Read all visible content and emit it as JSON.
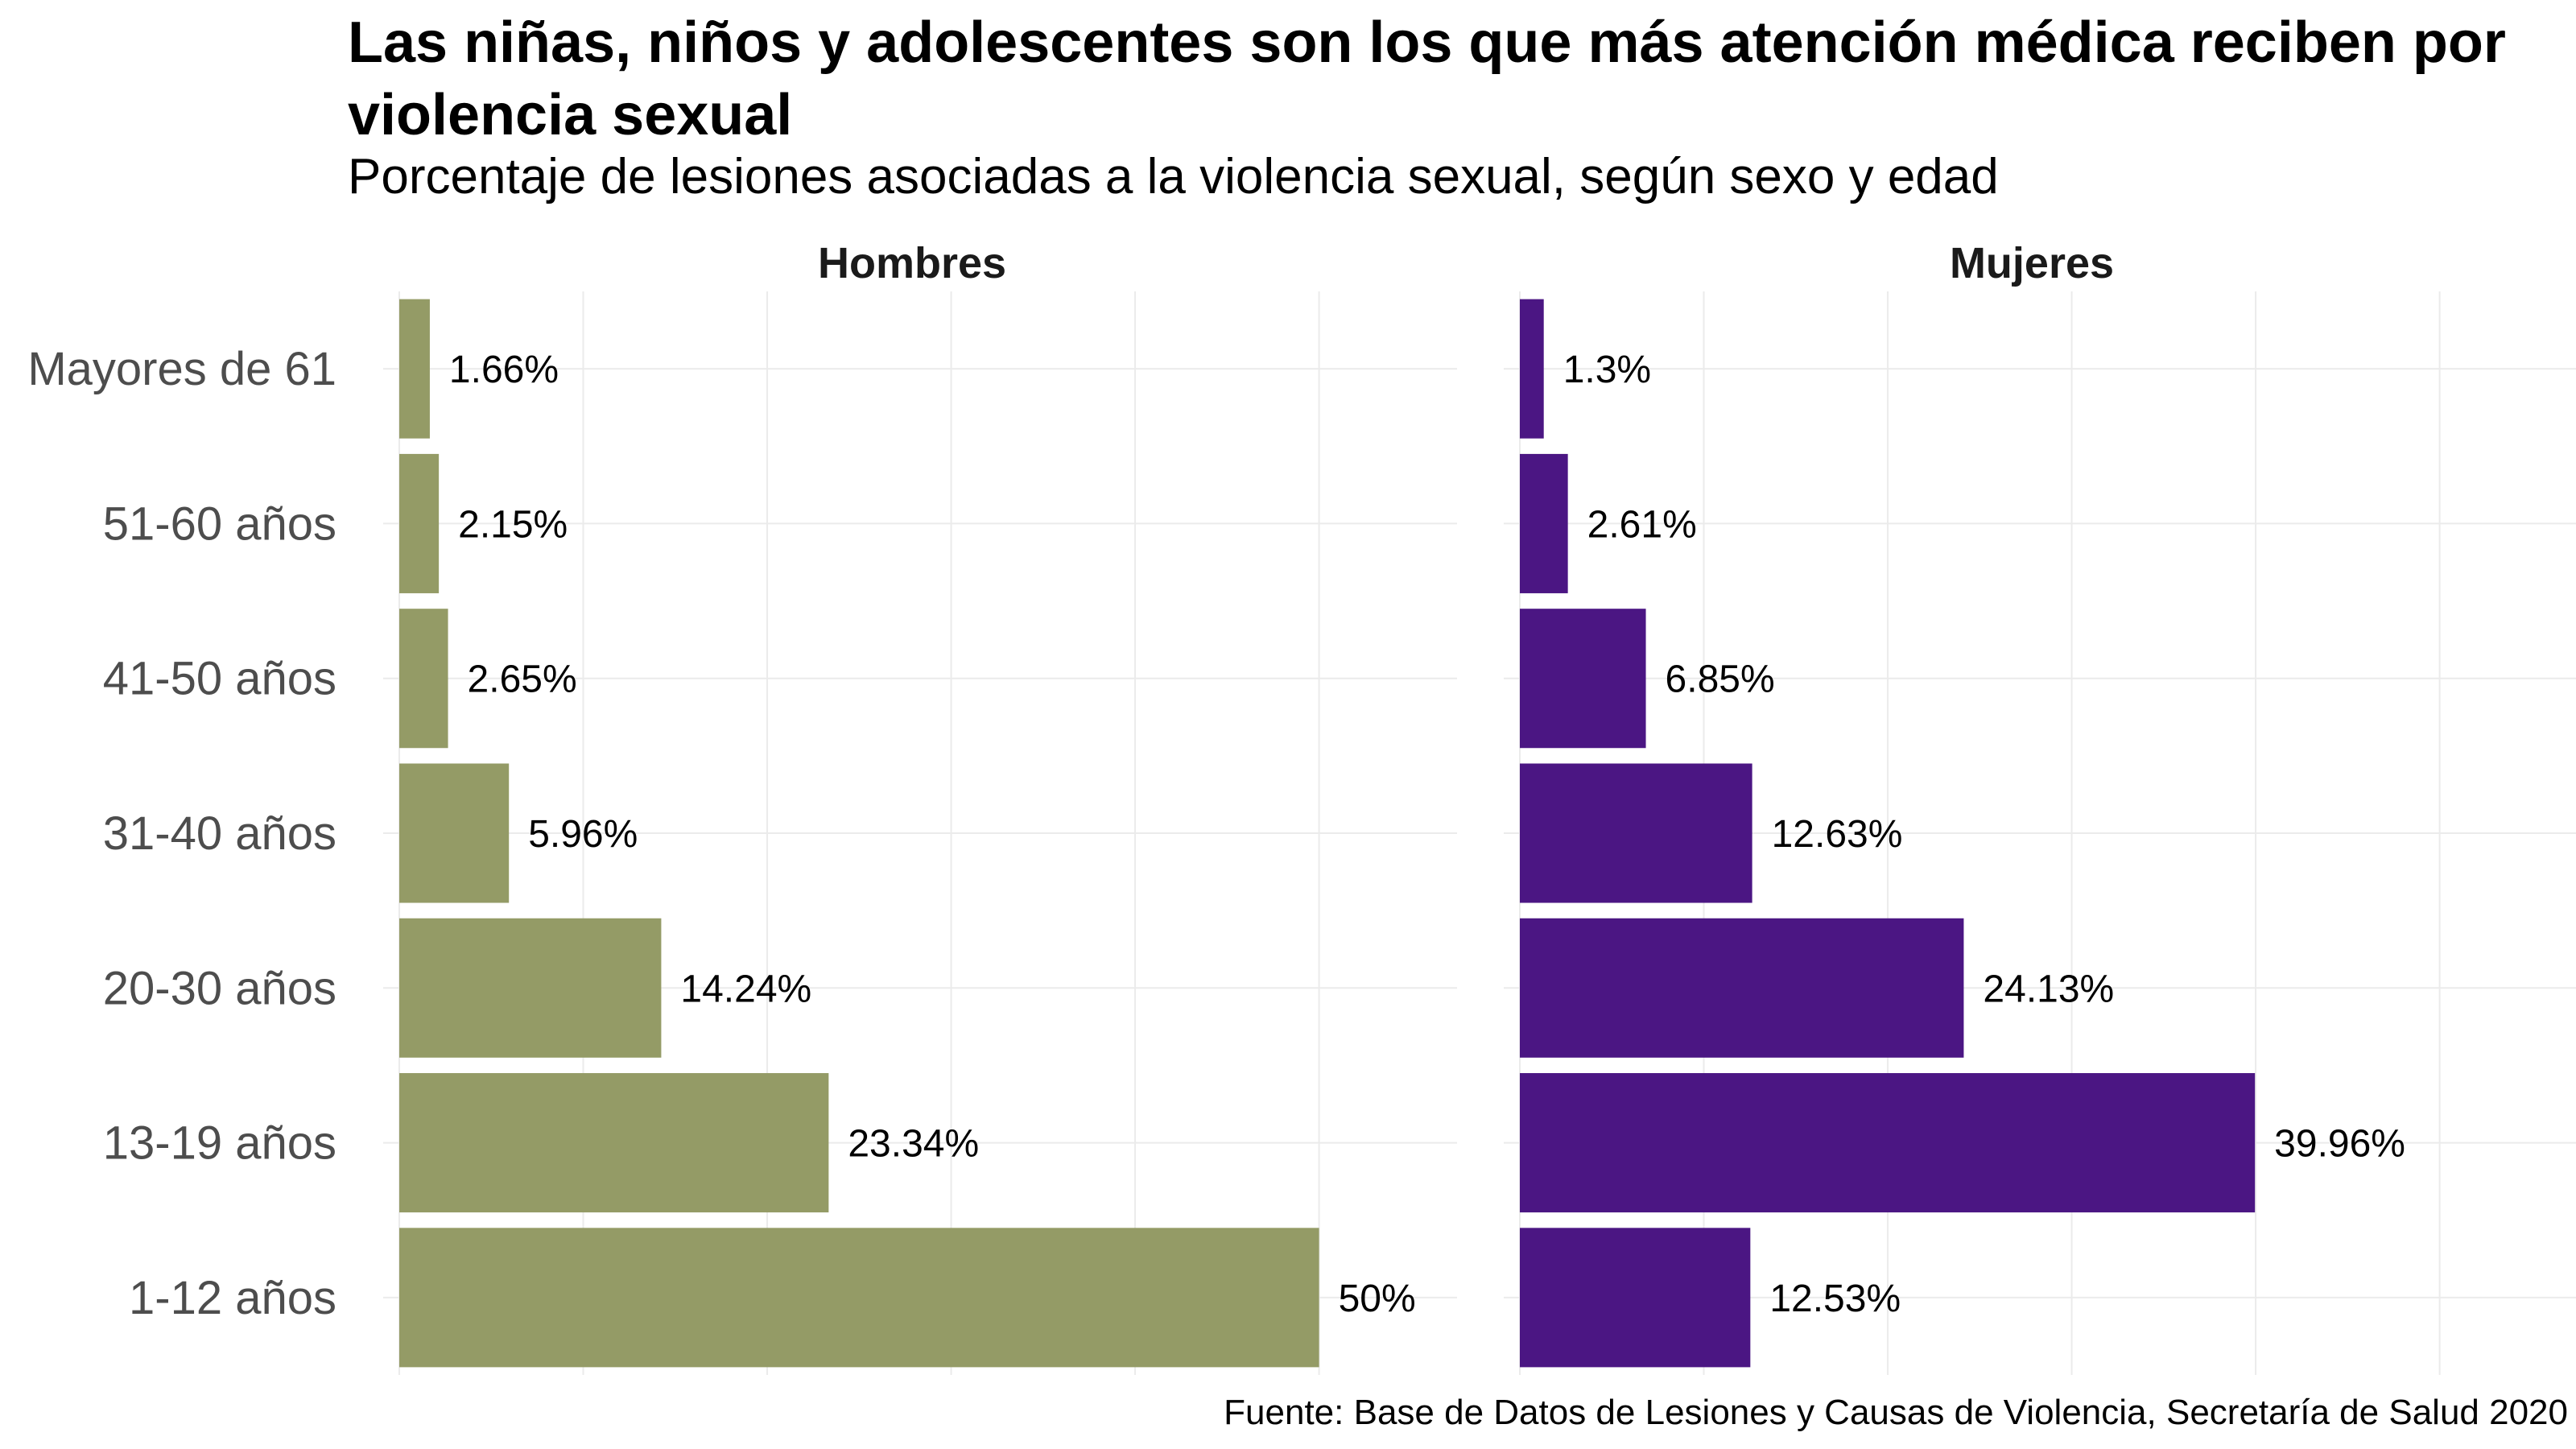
{
  "title": "Las niñas, niños y adolescentes son los que más atención médica reciben por violencia sexual",
  "subtitle": "Porcentaje de lesiones asociadas a la violencia sexual, según sexo y edad",
  "caption": "Fuente: Base de Datos de Lesiones y Causas de Violencia, Secretaría de Salud 2020",
  "chart_data": {
    "type": "bar",
    "orientation": "horizontal",
    "title": "Las niñas, niños y adolescentes son los que más atención médica reciben por violencia sexual",
    "subtitle": "Porcentaje de lesiones asociadas a la violencia sexual, según sexo y edad",
    "categories": [
      "Mayores de 61",
      "51-60 años",
      "41-50 años",
      "31-40 años",
      "20-30 años",
      "13-19 años",
      "1-12 años"
    ],
    "series": [
      {
        "name": "Hombres",
        "color": "#949B66",
        "values": [
          1.66,
          2.15,
          2.65,
          5.96,
          14.24,
          23.34,
          50
        ],
        "labels": [
          "1.66%",
          "2.15%",
          "2.65%",
          "5.96%",
          "14.24%",
          "23.34%",
          "50%"
        ]
      },
      {
        "name": "Mujeres",
        "color": "#4B1683",
        "values": [
          1.3,
          2.61,
          6.85,
          12.63,
          24.13,
          39.96,
          12.53
        ],
        "labels": [
          "1.3%",
          "2.61%",
          "6.85%",
          "12.63%",
          "24.13%",
          "39.96%",
          "12.53%"
        ]
      }
    ],
    "xlim": [
      0,
      57.5
    ],
    "xlabel": "",
    "ylabel": "",
    "grid": true,
    "x_tick_labels_shown": false
  }
}
